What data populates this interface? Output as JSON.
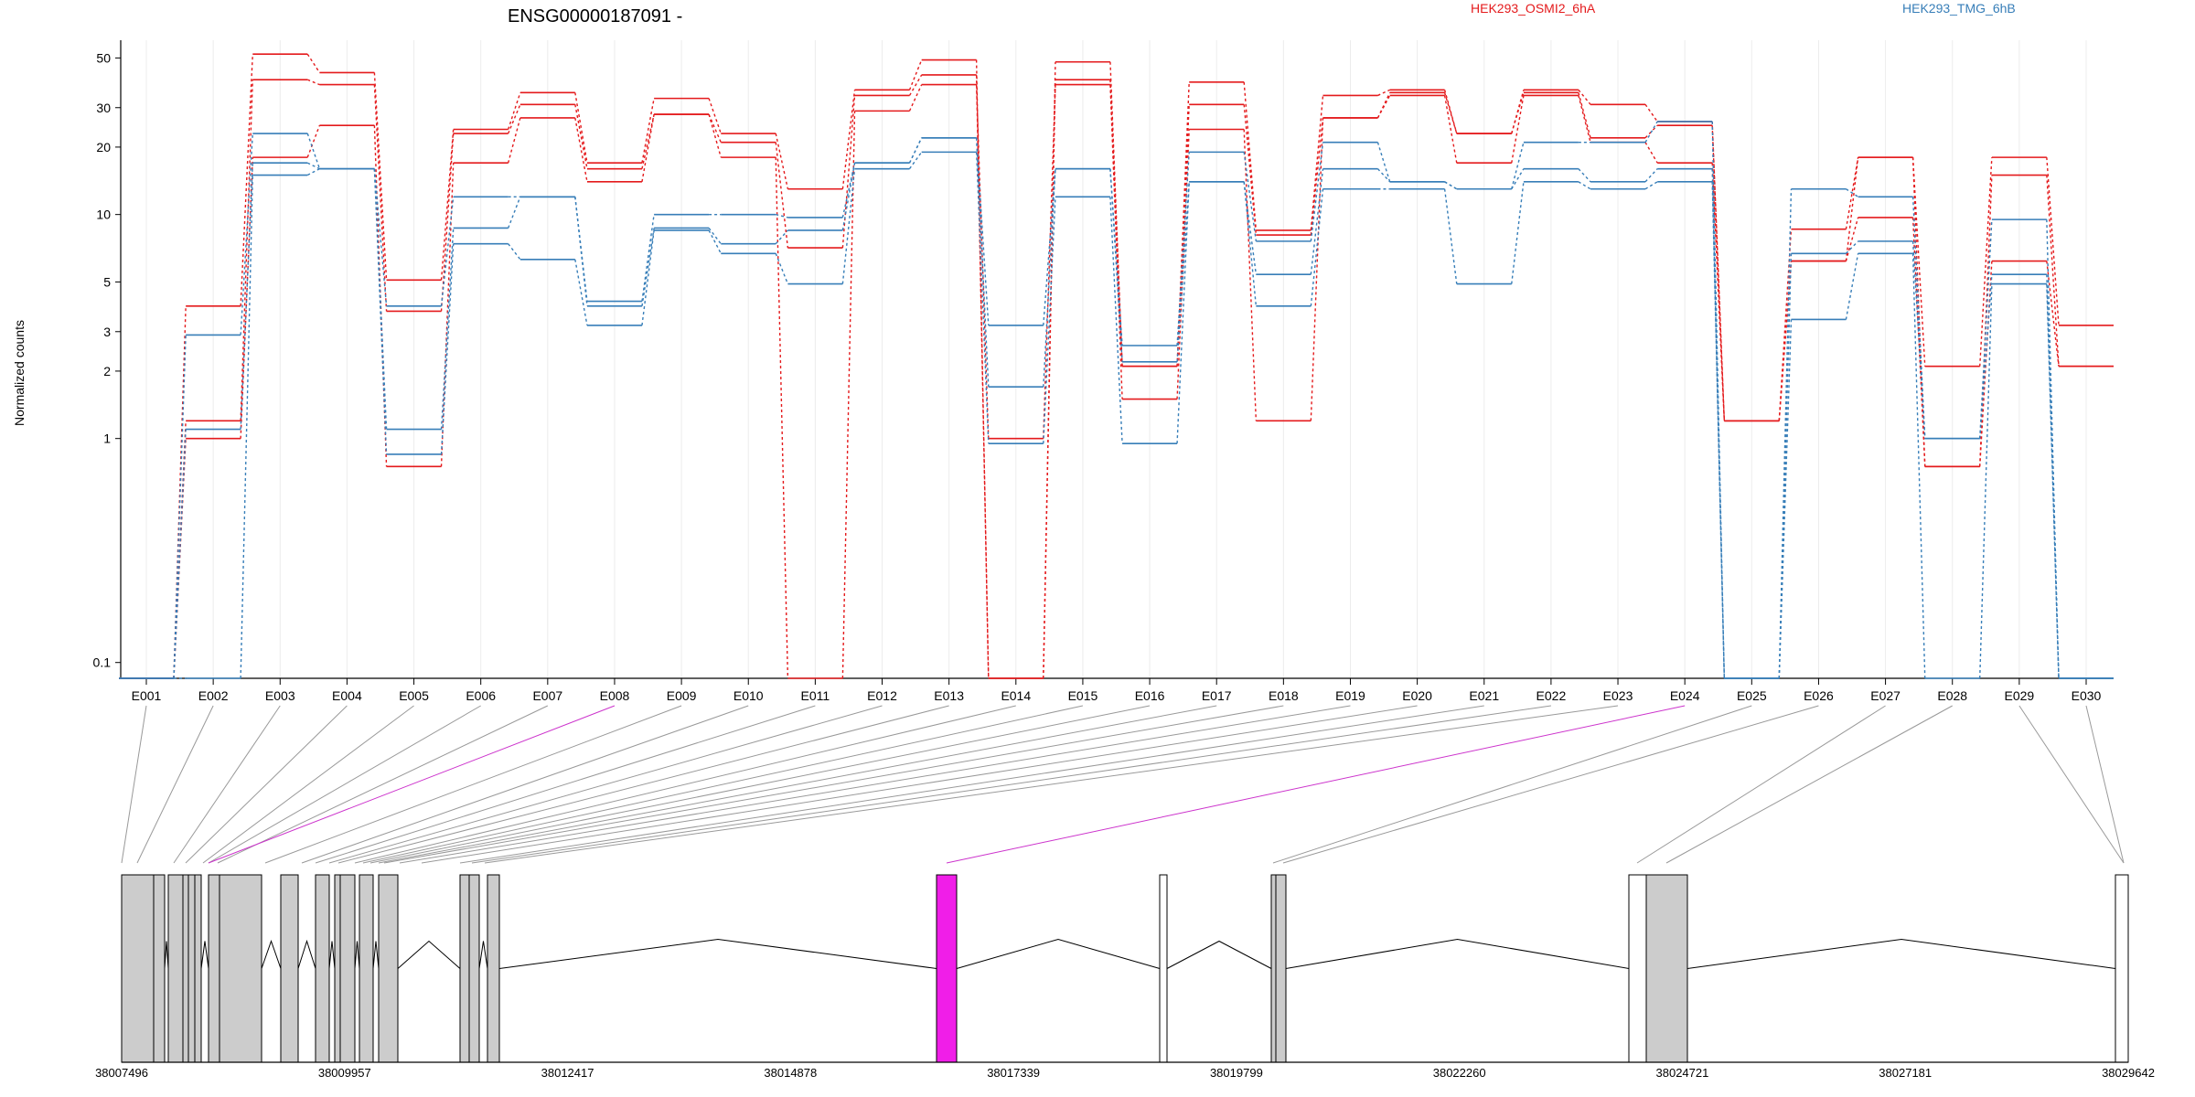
{
  "chart_data": {
    "type": "line",
    "title": "ENSG00000187091 -",
    "xlabel": "",
    "ylabel": "Normalized counts",
    "y_scale": "log",
    "ylim": [
      0.085,
      60
    ],
    "y_ticks": [
      0.1,
      1,
      2,
      3,
      5,
      10,
      20,
      30,
      50
    ],
    "grid": "vertical",
    "legend_placement": "top",
    "categories": [
      "E001",
      "E002",
      "E003",
      "E004",
      "E005",
      "E006",
      "E007",
      "E008",
      "E009",
      "E010",
      "E011",
      "E012",
      "E013",
      "E014",
      "E015",
      "E016",
      "E017",
      "E018",
      "E019",
      "E020",
      "E021",
      "E022",
      "E023",
      "E024",
      "E025",
      "E026",
      "E027",
      "E028",
      "E029",
      "E030"
    ],
    "series": [
      {
        "name": "HEK293_OSMI2_6hA",
        "color": "#e41a1c",
        "values": [
          0.085,
          3.9,
          52,
          43,
          5.1,
          24,
          35,
          17,
          33,
          23,
          13,
          36,
          49,
          0.085,
          48,
          2.1,
          39,
          8.5,
          34,
          36,
          23,
          36,
          31,
          26,
          1.2,
          8.6,
          18,
          2.1,
          18,
          3.2
        ]
      },
      {
        "name": "HEK293_OSMI2_6hA",
        "color": "#e41a1c",
        "values": [
          0.085,
          1.2,
          40,
          38,
          3.7,
          23,
          31,
          16,
          28,
          21,
          7.1,
          34,
          42,
          0.085,
          40,
          2.1,
          31,
          8.1,
          27,
          35,
          23,
          35,
          22,
          25,
          1.2,
          6.2,
          18,
          0.75,
          15,
          2.1
        ]
      },
      {
        "name": "HEK293_OSMI2_6hA",
        "color": "#e41a1c",
        "values": [
          0.085,
          1.0,
          18,
          25,
          0.75,
          17,
          27,
          14,
          28,
          18,
          0.085,
          29,
          38,
          1.0,
          38,
          1.5,
          24,
          1.2,
          27,
          34,
          17,
          34,
          21,
          17,
          1.2,
          6.2,
          9.7,
          0.75,
          6.2,
          2.1
        ]
      },
      {
        "name": "HEK293_TMG_6hB",
        "color": "#377eb8",
        "values": [
          0.085,
          2.9,
          23,
          16,
          3.9,
          12,
          12,
          4.1,
          10,
          10,
          9.7,
          17,
          22,
          3.2,
          16,
          2.6,
          19,
          7.6,
          21,
          14,
          13,
          21,
          21,
          26,
          0.085,
          13,
          12,
          1.0,
          9.5,
          0.085
        ]
      },
      {
        "name": "HEK293_TMG_6hB",
        "color": "#377eb8",
        "values": [
          0.085,
          1.1,
          17,
          16,
          1.1,
          8.7,
          12,
          3.9,
          8.7,
          7.4,
          8.5,
          17,
          22,
          1.7,
          16,
          2.2,
          14,
          5.4,
          16,
          14,
          13,
          16,
          14,
          16,
          0.085,
          6.7,
          7.6,
          1.0,
          5.4,
          0.085
        ]
      },
      {
        "name": "HEK293_TMG_6hB",
        "color": "#377eb8",
        "values": [
          0.085,
          0.085,
          15,
          16,
          0.85,
          7.4,
          6.3,
          3.2,
          8.5,
          6.7,
          4.9,
          16,
          19,
          0.95,
          12,
          0.95,
          14,
          3.9,
          13,
          13,
          4.9,
          14,
          13,
          14,
          0.085,
          3.4,
          6.7,
          0.085,
          4.9,
          0.085
        ]
      }
    ],
    "legend": [
      "HEK293_OSMI2_6hA",
      "HEK293_TMG_6hB"
    ],
    "gene_model": {
      "coord_ticks": [
        "38007496",
        "38009957",
        "38012417",
        "38014878",
        "38017339",
        "38019799",
        "38022260",
        "38024721",
        "38027181",
        "38029642"
      ],
      "highlight_color": "#f01ee8",
      "highlighted_exons": [
        "E008",
        "E024"
      ],
      "intron_line_color": "#000000",
      "exon_fill": "#cccccc"
    }
  }
}
